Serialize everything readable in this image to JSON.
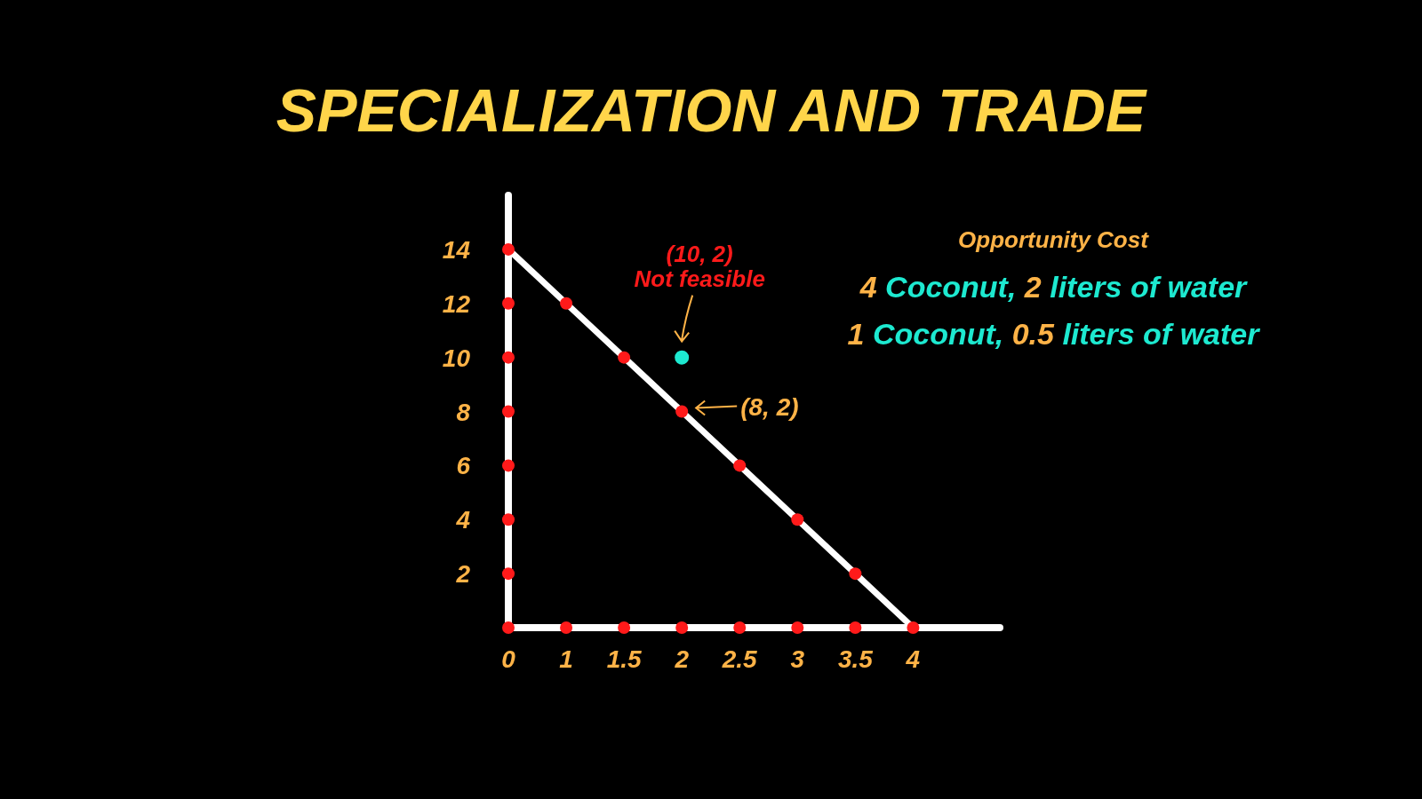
{
  "chart_data": {
    "type": "line",
    "title": "SPECIALIZATION AND TRADE",
    "categories": [
      "0",
      "1",
      "1.5",
      "2",
      "2.5",
      "3",
      "3.5",
      "4"
    ],
    "series": [
      {
        "color": "#ffffff",
        "values": [
          14,
          12,
          10,
          8,
          6,
          4,
          2,
          0
        ]
      },
      {
        "type": "scatter",
        "color": "#ff1a1a",
        "x": [
          "0",
          "1",
          "1.5",
          "2",
          "2.5",
          "3",
          "3.5",
          "4"
        ],
        "values": [
          14,
          12,
          10,
          8,
          6,
          4,
          2,
          0
        ]
      },
      {
        "type": "scatter",
        "color": "#ff1a1a",
        "x": [
          "0",
          "1",
          "1.5",
          "2",
          "2.5",
          "3",
          "3.5",
          "0",
          "0",
          "0",
          "0",
          "0",
          "0"
        ],
        "values": [
          0,
          0,
          0,
          0,
          0,
          0,
          0,
          2,
          4,
          6,
          8,
          10,
          12
        ]
      },
      {
        "type": "scatter",
        "color": "#1de9d0",
        "x": [
          "2"
        ],
        "values": [
          10
        ]
      }
    ],
    "ylim": [
      0,
      16
    ],
    "yticks": [
      2,
      4,
      6,
      8,
      10,
      12,
      14
    ],
    "grid": false,
    "legend": false,
    "annotations": [
      {
        "text": "(10, 2) Not feasible",
        "x": "2",
        "y": 10
      },
      {
        "text": "(8, 2)",
        "x": "2",
        "y": 8
      },
      "Opportunity Cost",
      "4 Coconut, 2 liters of water",
      "1 Coconut, 0.5 liters of water"
    ]
  }
}
